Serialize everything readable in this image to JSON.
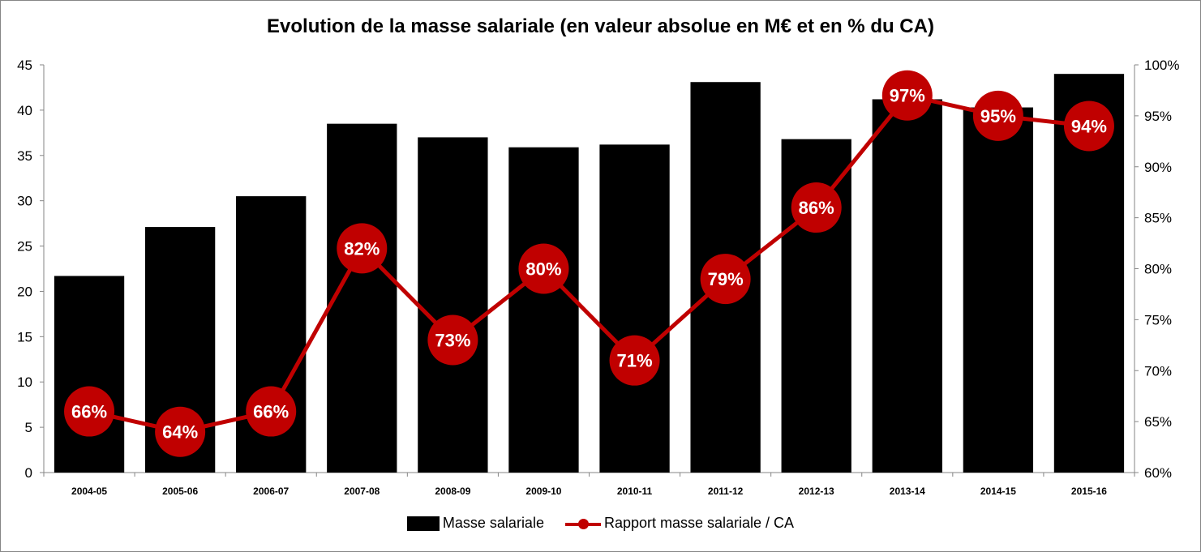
{
  "chart_data": {
    "type": "bar+line",
    "title": "Evolution de la masse salariale (en valeur absolue en M€ et en % du CA)",
    "categories": [
      "2004-05",
      "2005-06",
      "2006-07",
      "2007-08",
      "2008-09",
      "2009-10",
      "2010-11",
      "2011-12",
      "2012-13",
      "2013-14",
      "2014-15",
      "2015-16"
    ],
    "series": [
      {
        "name": "Masse salariale",
        "type": "bar",
        "axis": "left",
        "color": "#000000",
        "values": [
          21.7,
          27.1,
          30.5,
          38.5,
          37.0,
          35.9,
          36.2,
          43.1,
          36.8,
          41.2,
          40.3,
          44.0
        ]
      },
      {
        "name": "Rapport masse salariale / CA",
        "type": "line",
        "axis": "right",
        "color": "#c00000",
        "values": [
          66,
          64,
          66,
          82,
          73,
          80,
          71,
          79,
          86,
          97,
          95,
          94
        ],
        "labels": [
          "66%",
          "64%",
          "66%",
          "82%",
          "73%",
          "80%",
          "71%",
          "79%",
          "86%",
          "97%",
          "95%",
          "94%"
        ]
      }
    ],
    "y_left": {
      "min": 0,
      "max": 45,
      "step": 5,
      "ticks": [
        "0",
        "5",
        "10",
        "15",
        "20",
        "25",
        "30",
        "35",
        "40",
        "45"
      ]
    },
    "y_right": {
      "min": 60,
      "max": 100,
      "step": 5,
      "ticks": [
        "60%",
        "65%",
        "70%",
        "75%",
        "80%",
        "85%",
        "90%",
        "95%",
        "100%"
      ]
    },
    "grid": false,
    "legend_position": "bottom"
  }
}
